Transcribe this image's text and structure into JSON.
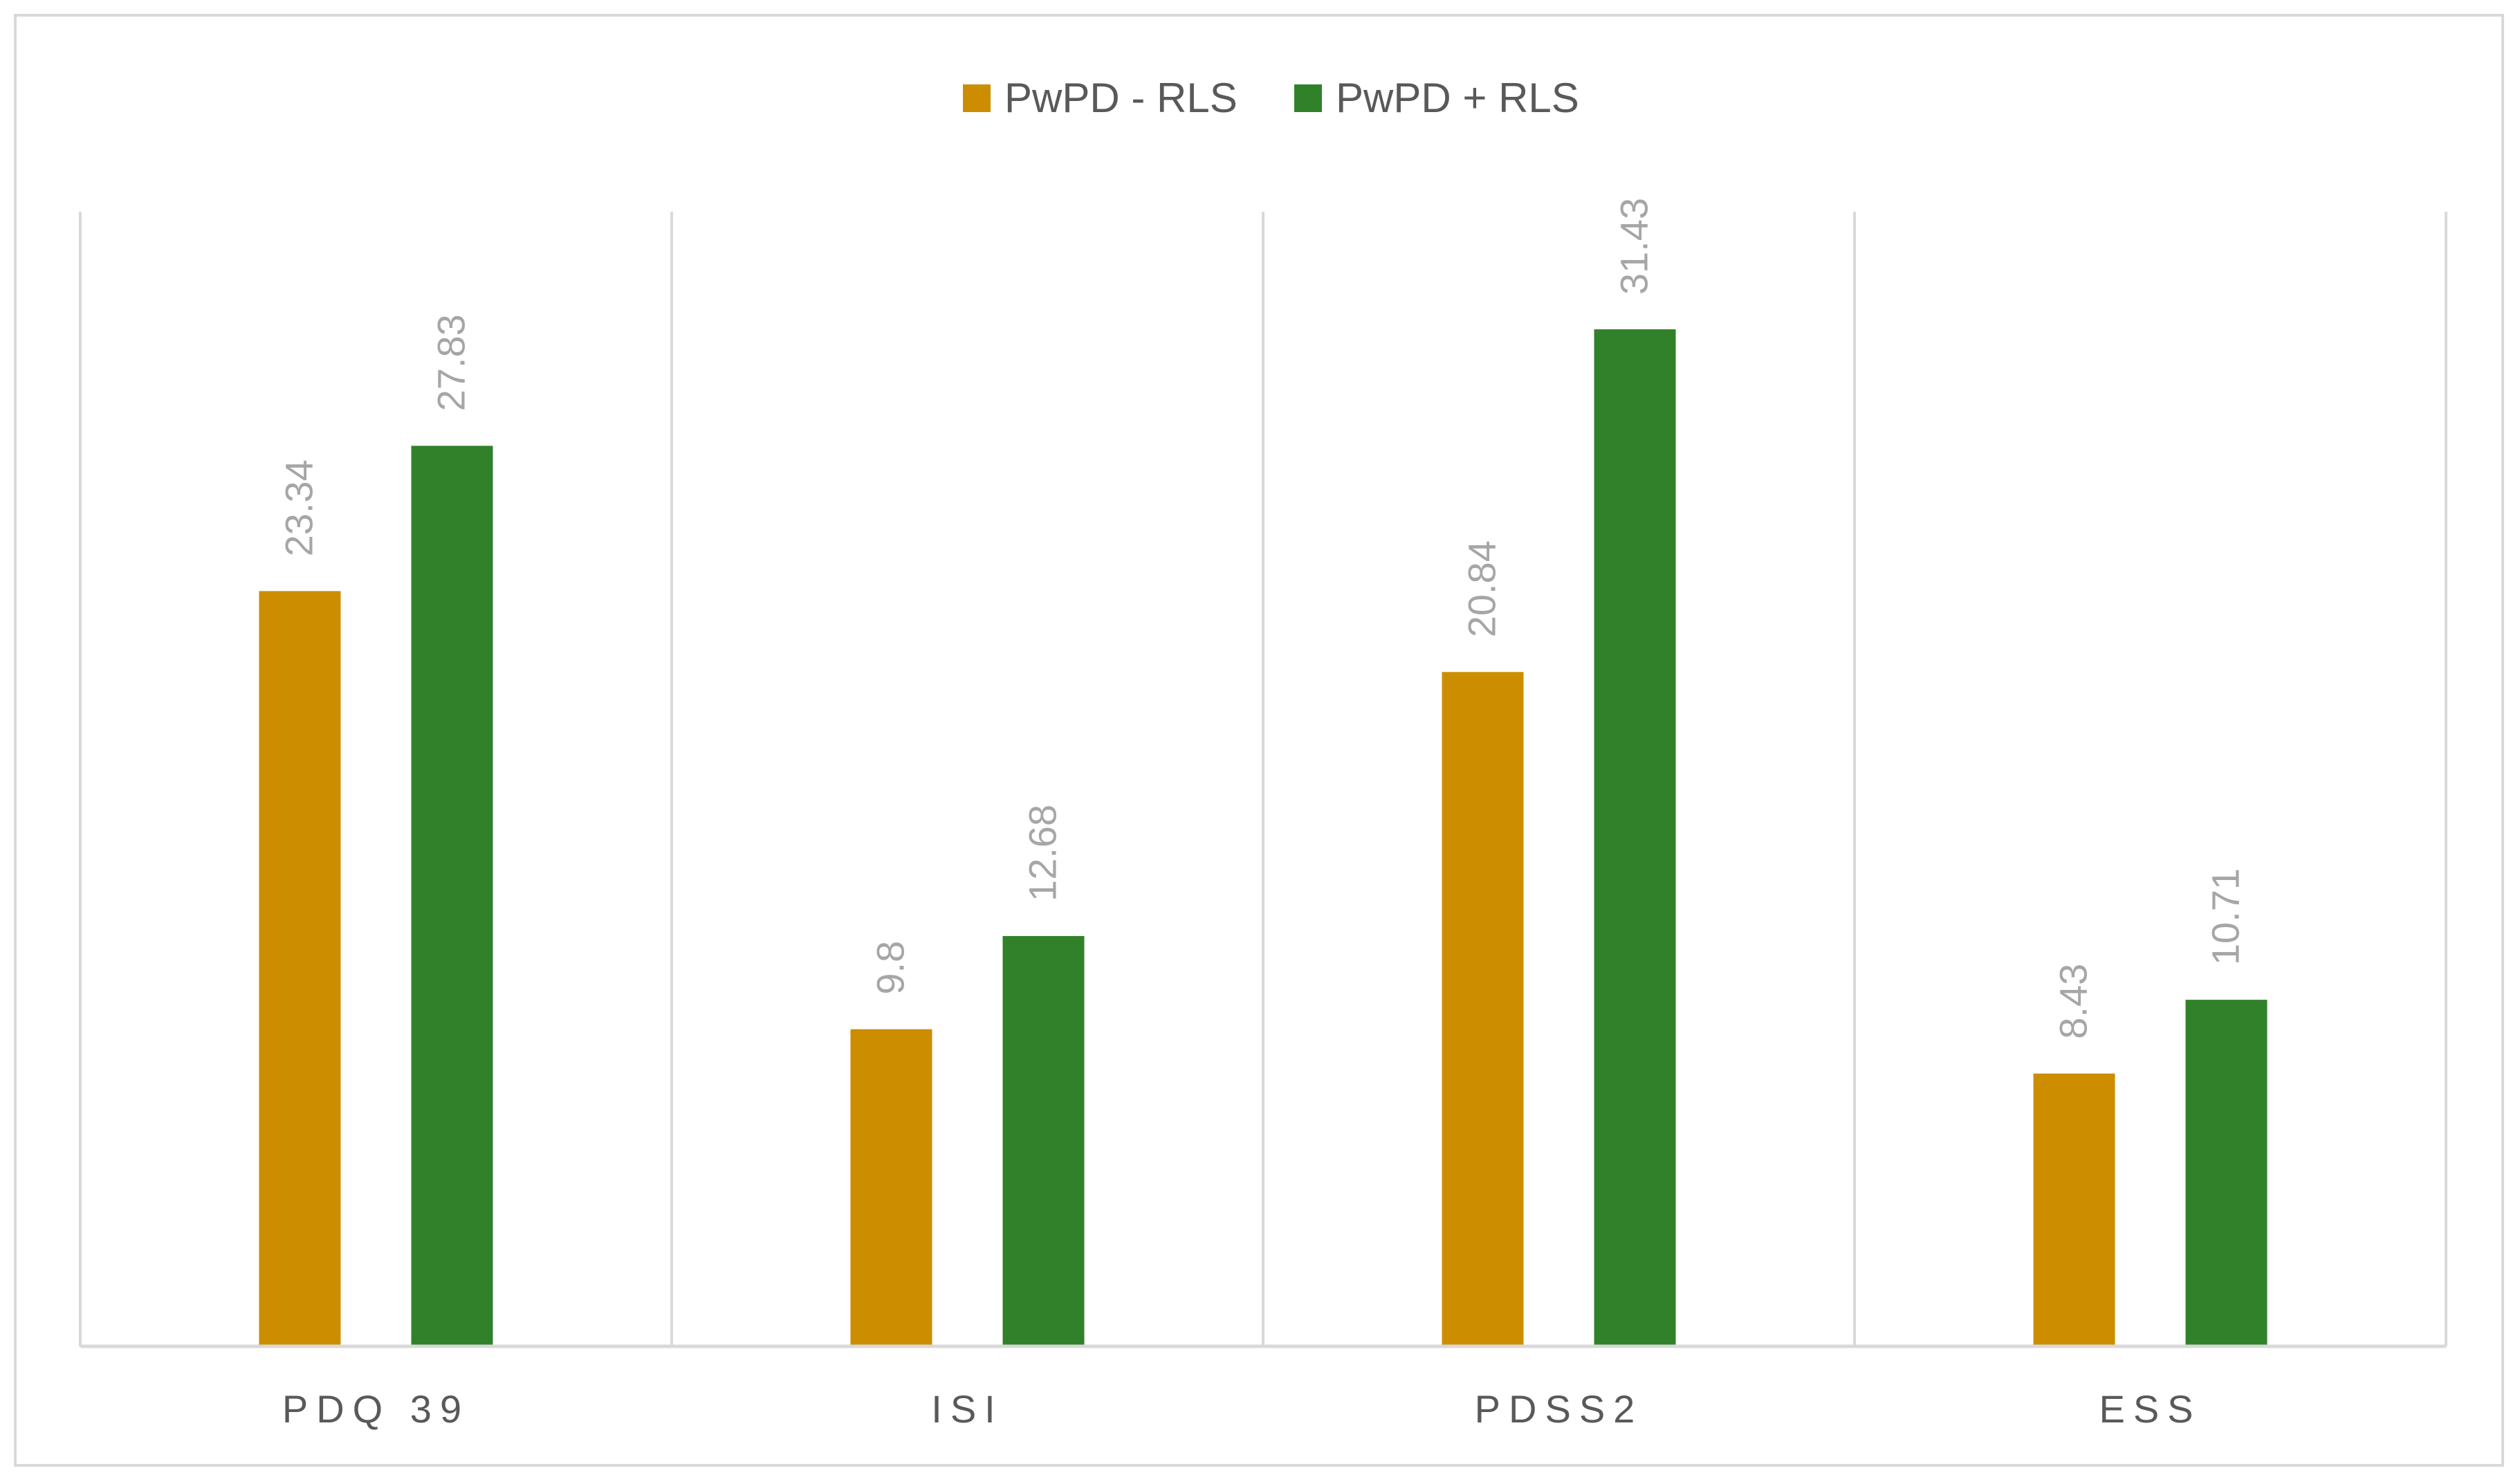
{
  "chart_data": {
    "type": "bar",
    "categories": [
      "PDQ 39",
      "ISI",
      "PDSS2",
      "ESS"
    ],
    "series": [
      {
        "name": "PwPD - RLS",
        "color": "#CC8E00",
        "values": [
          23.34,
          9.8,
          20.84,
          8.43
        ]
      },
      {
        "name": "PwPD + RLS",
        "color": "#31812A",
        "values": [
          27.83,
          12.68,
          31.43,
          10.71
        ]
      }
    ],
    "data_labels": {
      "PwPD - RLS": [
        "23.34",
        "9.8",
        "20.84",
        "8.43"
      ],
      "PwPD + RLS": [
        "27.83",
        "12.68",
        "31.43",
        "10.71"
      ]
    },
    "ylim": [
      0,
      35
    ],
    "grid": false,
    "legend_position": "top",
    "colors": {
      "axis": "#d9d9d9",
      "category_text": "#595959",
      "data_label_text": "#a6a6a6"
    }
  }
}
